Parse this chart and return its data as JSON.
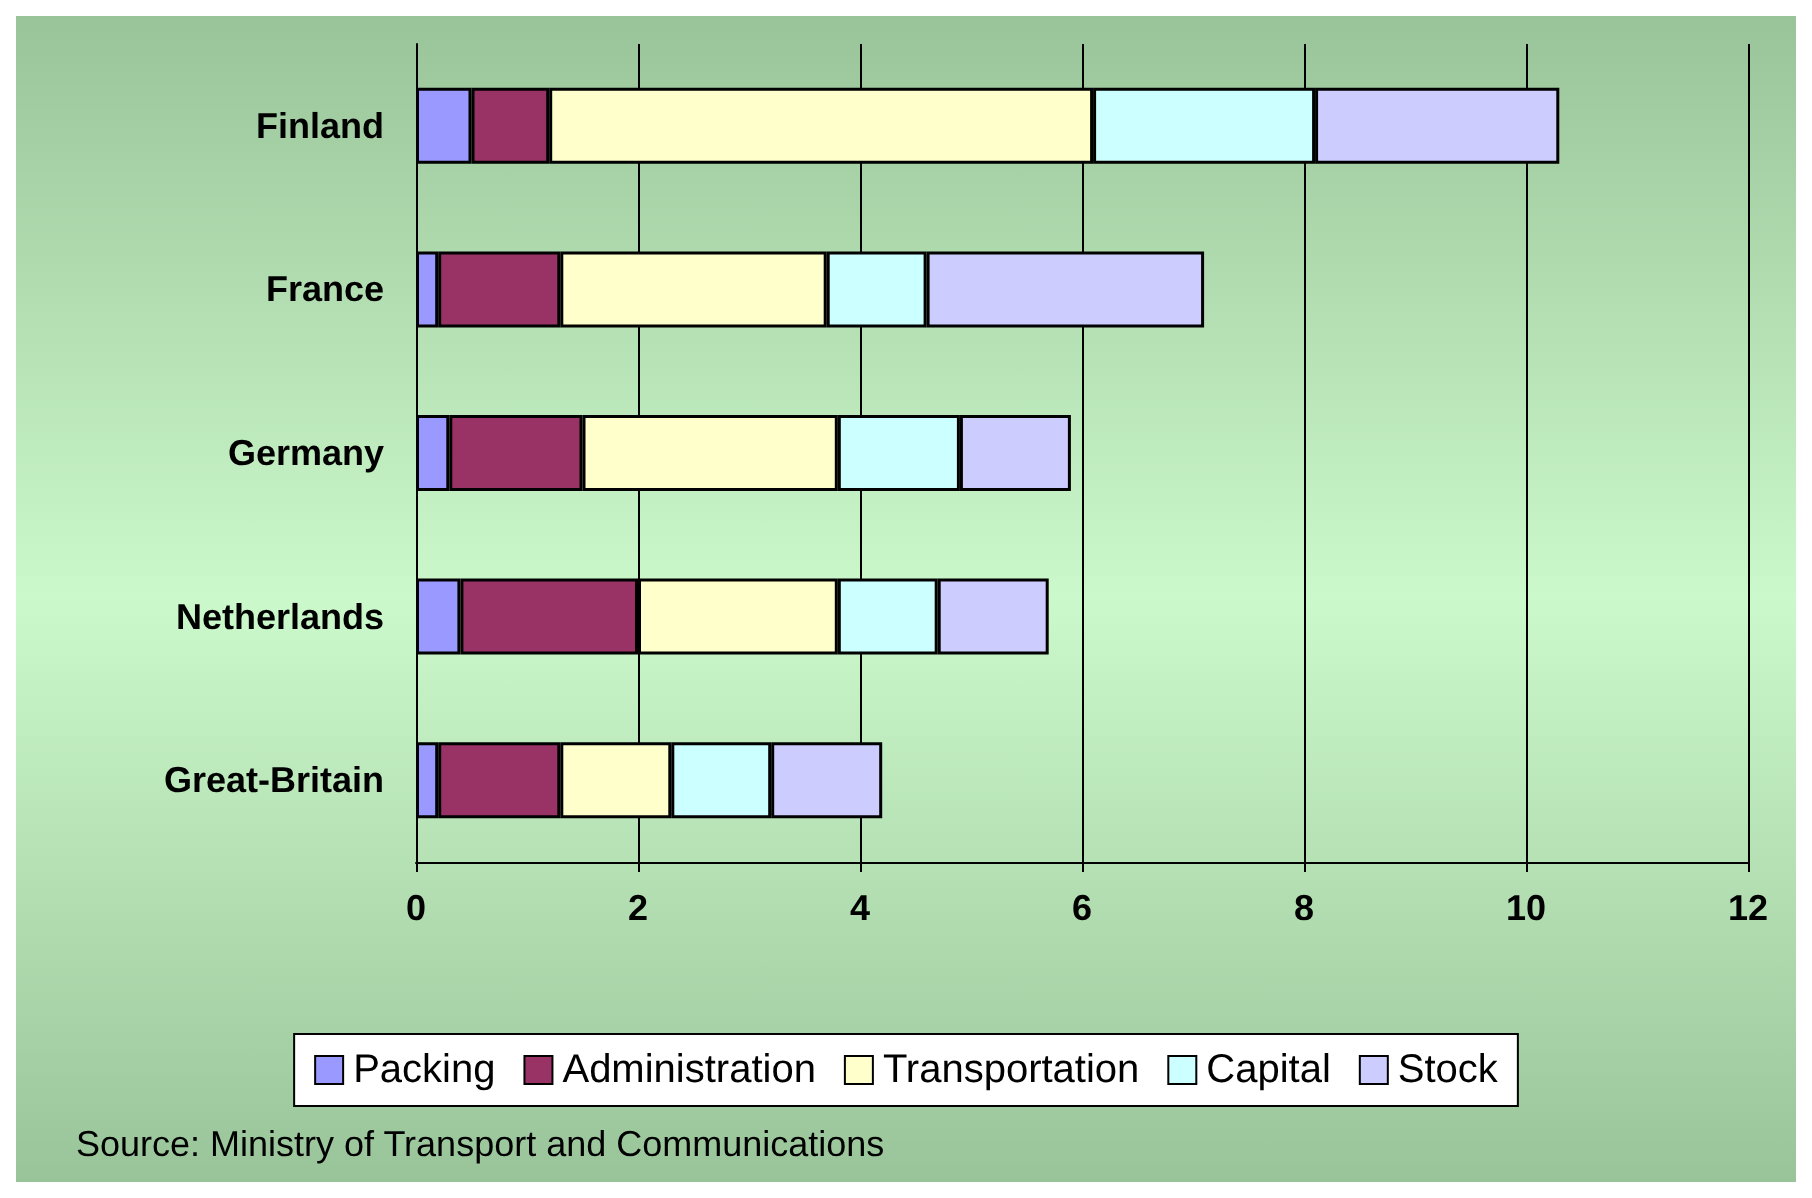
{
  "chart_data": {
    "type": "bar",
    "orientation": "horizontal",
    "stacked": true,
    "categories": [
      "Finland",
      "France",
      "Germany",
      "Netherlands",
      "Great-Britain"
    ],
    "series": [
      {
        "name": "Packing",
        "color": "#9999ff",
        "values": [
          0.5,
          0.2,
          0.3,
          0.4,
          0.2
        ]
      },
      {
        "name": "Administration",
        "color": "#993366",
        "values": [
          0.7,
          1.1,
          1.2,
          1.6,
          1.1
        ]
      },
      {
        "name": "Transportation",
        "color": "#ffffcc",
        "values": [
          4.9,
          2.4,
          2.3,
          1.8,
          1.0
        ]
      },
      {
        "name": "Capital",
        "color": "#ccffff",
        "values": [
          2.0,
          0.9,
          1.1,
          0.9,
          0.9
        ]
      },
      {
        "name": "Stock",
        "color": "#ccccff",
        "values": [
          2.2,
          2.5,
          1.0,
          1.0,
          1.0
        ]
      }
    ],
    "xlim": [
      0,
      12
    ],
    "xticks": [
      0,
      2,
      4,
      6,
      8,
      10,
      12
    ],
    "grid": "x",
    "legend": "bottom",
    "annotations": [
      "Source: Ministry of Transport and Communications"
    ]
  }
}
